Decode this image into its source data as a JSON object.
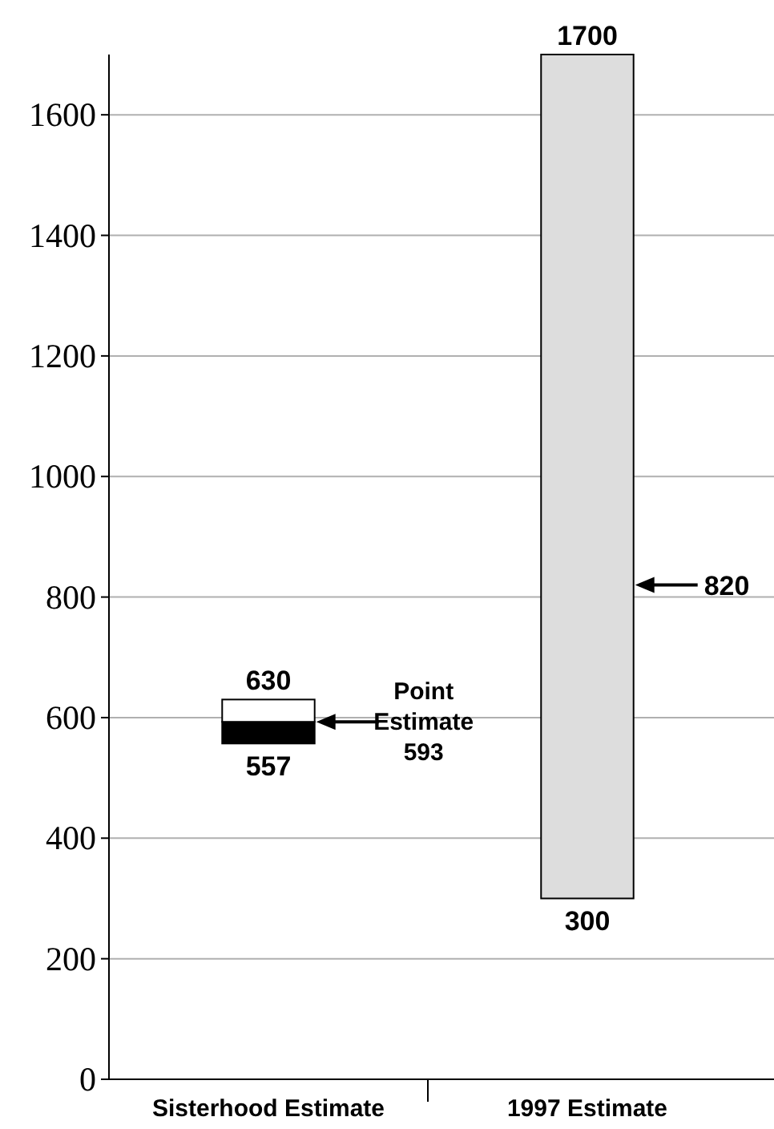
{
  "chart_data": {
    "type": "bar",
    "categories": [
      "Sisterhood Estimate",
      "1997 Estimate"
    ],
    "series": [
      {
        "color": "#000000",
        "values": [
          36,
          null
        ],
        "base": [
          557,
          null
        ]
      },
      {
        "color": "#ffffff",
        "values": [
          37,
          null
        ],
        "base": [
          593,
          null
        ]
      },
      {
        "color": "#dddddd",
        "values": [
          null,
          1400
        ],
        "base": [
          null,
          300
        ]
      }
    ],
    "ylim": [
      0,
      1700
    ],
    "yticks": [
      0,
      200,
      400,
      600,
      800,
      1000,
      1200,
      1400,
      1600
    ],
    "grid": "y",
    "annotations": [
      {
        "text": "630",
        "x": "Sisterhood Estimate",
        "y": 630
      },
      {
        "text": "557",
        "x": "Sisterhood Estimate",
        "y": 557
      },
      {
        "text": "1700",
        "x": "1997 Estimate",
        "y": 1700
      },
      {
        "text": "300",
        "x": "1997 Estimate",
        "y": 300
      }
    ],
    "ref_lines": [
      {
        "axis": "y",
        "value": 593,
        "label": "Point Estimate 593"
      },
      {
        "axis": "y",
        "value": 820,
        "label": "820"
      }
    ]
  }
}
